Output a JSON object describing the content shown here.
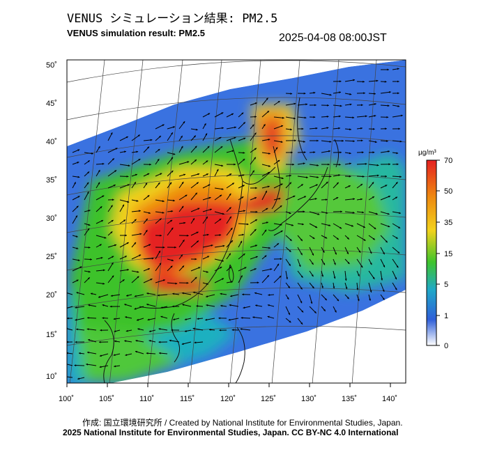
{
  "header": {
    "title_jp": "VENUS シミュレーション結果: PM2.5",
    "title_en": "VENUS simulation result: PM2.5",
    "timestamp": "2025-04-08 08:00JST"
  },
  "map": {
    "lon_ticks": [
      "100˚",
      "105˚",
      "110˚",
      "115˚",
      "120˚",
      "125˚",
      "130˚",
      "135˚",
      "140˚"
    ],
    "lat_ticks": [
      "50˚",
      "45˚",
      "40˚",
      "35˚",
      "30˚",
      "25˚",
      "20˚",
      "15˚",
      "10˚"
    ],
    "lon_range": [
      100,
      142
    ],
    "lat_range": [
      9,
      51
    ]
  },
  "colorbar": {
    "unit": "µg/m³",
    "labels": [
      "70",
      "50",
      "35",
      "15",
      "5",
      "1",
      "0"
    ],
    "colors": [
      "#e52020",
      "#ee8a10",
      "#f2d21c",
      "#3fc42c",
      "#1fa8c8",
      "#2f5fd8",
      "#ffffff"
    ]
  },
  "footer": {
    "credit": "作成: 国立環境研究所 / Created by National Institute for Environmental Studies, Japan.",
    "license": "2025 National Institute for Environmental Studies, Japan. CC BY-NC 4.0 International"
  }
}
